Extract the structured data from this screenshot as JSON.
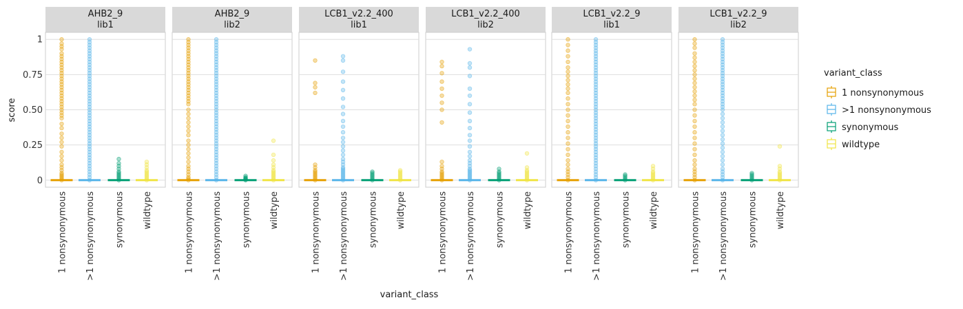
{
  "colors": {
    "1 nonsynonymous": "#E69F00",
    ">1 nonsynonymous": "#56B4E9",
    "synonymous": "#009E73",
    "wildtype": "#F0E442"
  },
  "chart_data": {
    "type": "scatter",
    "facets": [
      {
        "line1": "AHB2_9",
        "line2": "lib1",
        "points": {
          "1 nonsynonymous": [
            1,
            0.97,
            0.95,
            0.93,
            0.9,
            0.88,
            0.86,
            0.84,
            0.82,
            0.8,
            0.78,
            0.76,
            0.74,
            0.72,
            0.7,
            0.68,
            0.66,
            0.64,
            0.62,
            0.6,
            0.58,
            0.56,
            0.54,
            0.52,
            0.5,
            0.48,
            0.46,
            0.44,
            0.4,
            0.37,
            0.33,
            0.3,
            0.27,
            0.24,
            0.2,
            0.17,
            0.14,
            0.11,
            0.09,
            0.07,
            0.05,
            0.04,
            0.03,
            0.02,
            0.01,
            0
          ],
          ">1 nonsynonymous": [
            1,
            0.98,
            0.96,
            0.94,
            0.92,
            0.9,
            0.88,
            0.86,
            0.84,
            0.82,
            0.8,
            0.78,
            0.76,
            0.74,
            0.72,
            0.7,
            0.68,
            0.66,
            0.64,
            0.62,
            0.6,
            0.58,
            0.56,
            0.54,
            0.52,
            0.5,
            0.48,
            0.46,
            0.44,
            0.42,
            0.4,
            0.38,
            0.36,
            0.34,
            0.32,
            0.3,
            0.28,
            0.26,
            0.24,
            0.22,
            0.2,
            0.18,
            0.16,
            0.14,
            0.12,
            0.1,
            0.08,
            0.06,
            0.04,
            0.02,
            0
          ],
          "synonymous": [
            0.15,
            0.12,
            0.1,
            0.08,
            0.06,
            0.05,
            0.04,
            0.03,
            0.02,
            0.01,
            0
          ],
          "wildtype": [
            0.13,
            0.11,
            0.09,
            0.07,
            0.06,
            0.05,
            0.04,
            0.03,
            0.02,
            0.01,
            0
          ]
        }
      },
      {
        "line1": "AHB2_9",
        "line2": "lib2",
        "points": {
          "1 nonsynonymous": [
            1,
            0.98,
            0.96,
            0.94,
            0.92,
            0.9,
            0.88,
            0.86,
            0.84,
            0.82,
            0.8,
            0.78,
            0.76,
            0.74,
            0.72,
            0.7,
            0.68,
            0.66,
            0.64,
            0.62,
            0.6,
            0.58,
            0.56,
            0.54,
            0.5,
            0.47,
            0.44,
            0.41,
            0.38,
            0.35,
            0.32,
            0.28,
            0.25,
            0.22,
            0.19,
            0.16,
            0.13,
            0.1,
            0.08,
            0.06,
            0.04,
            0.02,
            0.01,
            0
          ],
          ">1 nonsynonymous": [
            1,
            0.98,
            0.96,
            0.94,
            0.92,
            0.9,
            0.88,
            0.86,
            0.84,
            0.82,
            0.8,
            0.78,
            0.76,
            0.74,
            0.72,
            0.7,
            0.68,
            0.66,
            0.64,
            0.62,
            0.6,
            0.58,
            0.56,
            0.54,
            0.52,
            0.5,
            0.48,
            0.46,
            0.44,
            0.42,
            0.4,
            0.38,
            0.36,
            0.34,
            0.32,
            0.3,
            0.28,
            0.26,
            0.24,
            0.22,
            0.2,
            0.18,
            0.16,
            0.14,
            0.12,
            0.1,
            0.08,
            0.06,
            0.04,
            0.02,
            0
          ],
          "synonymous": [
            0.03,
            0.02,
            0.015,
            0.01,
            0.005,
            0
          ],
          "wildtype": [
            0.28,
            0.18,
            0.14,
            0.11,
            0.09,
            0.07,
            0.06,
            0.05,
            0.04,
            0.03,
            0.02,
            0.01,
            0
          ]
        }
      },
      {
        "line1": "LCB1_v2.2_400",
        "line2": "lib1",
        "points": {
          "1 nonsynonymous": [
            0.85,
            0.69,
            0.66,
            0.62,
            0.11,
            0.09,
            0.07,
            0.06,
            0.05,
            0.04,
            0.03,
            0.02,
            0.01,
            0
          ],
          ">1 nonsynonymous": [
            0.88,
            0.85,
            0.77,
            0.7,
            0.64,
            0.58,
            0.52,
            0.47,
            0.42,
            0.38,
            0.34,
            0.3,
            0.27,
            0.24,
            0.21,
            0.18,
            0.15,
            0.13,
            0.11,
            0.09,
            0.08,
            0.07,
            0.06,
            0.05,
            0.04,
            0.03,
            0.02,
            0.01,
            0
          ],
          "synonymous": [
            0.06,
            0.05,
            0.04,
            0.03,
            0.02,
            0.01,
            0
          ],
          "wildtype": [
            0.07,
            0.06,
            0.05,
            0.04,
            0.03,
            0.02,
            0.01,
            0
          ]
        }
      },
      {
        "line1": "LCB1_v2.2_400",
        "line2": "lib2",
        "points": {
          "1 nonsynonymous": [
            0.84,
            0.81,
            0.76,
            0.7,
            0.65,
            0.6,
            0.55,
            0.5,
            0.41,
            0.13,
            0.1,
            0.08,
            0.06,
            0.05,
            0.04,
            0.03,
            0.02,
            0.01,
            0
          ],
          ">1 nonsynonymous": [
            0.93,
            0.83,
            0.8,
            0.74,
            0.65,
            0.6,
            0.54,
            0.48,
            0.42,
            0.37,
            0.32,
            0.28,
            0.24,
            0.2,
            0.17,
            0.14,
            0.12,
            0.1,
            0.08,
            0.07,
            0.06,
            0.05,
            0.04,
            0.03,
            0.02,
            0.01,
            0
          ],
          "synonymous": [
            0.08,
            0.06,
            0.05,
            0.04,
            0.03,
            0.02,
            0.01,
            0
          ],
          "wildtype": [
            0.19,
            0.09,
            0.07,
            0.06,
            0.05,
            0.04,
            0.03,
            0.02,
            0.01,
            0
          ]
        }
      },
      {
        "line1": "LCB1_v2.2_9",
        "line2": "lib1",
        "points": {
          "1 nonsynonymous": [
            1,
            0.96,
            0.92,
            0.88,
            0.84,
            0.8,
            0.77,
            0.74,
            0.71,
            0.68,
            0.65,
            0.62,
            0.58,
            0.54,
            0.5,
            0.46,
            0.42,
            0.38,
            0.34,
            0.3,
            0.26,
            0.22,
            0.18,
            0.14,
            0.11,
            0.08,
            0.06,
            0.04,
            0.02,
            0
          ],
          ">1 nonsynonymous": [
            1,
            0.98,
            0.96,
            0.94,
            0.92,
            0.9,
            0.88,
            0.86,
            0.84,
            0.82,
            0.8,
            0.78,
            0.76,
            0.74,
            0.72,
            0.7,
            0.68,
            0.66,
            0.64,
            0.62,
            0.6,
            0.58,
            0.56,
            0.54,
            0.52,
            0.5,
            0.48,
            0.46,
            0.44,
            0.42,
            0.4,
            0.38,
            0.36,
            0.34,
            0.32,
            0.3,
            0.28,
            0.26,
            0.24,
            0.22,
            0.2,
            0.18,
            0.16,
            0.14,
            0.12,
            0.1,
            0.08,
            0.06,
            0.04,
            0.02,
            0
          ],
          "synonymous": [
            0.04,
            0.03,
            0.02,
            0.01,
            0
          ],
          "wildtype": [
            0.1,
            0.08,
            0.06,
            0.05,
            0.04,
            0.03,
            0.02,
            0.01,
            0
          ]
        }
      },
      {
        "line1": "LCB1_v2.2_9",
        "line2": "lib2",
        "points": {
          "1 nonsynonymous": [
            1,
            0.97,
            0.94,
            0.9,
            0.87,
            0.84,
            0.81,
            0.78,
            0.75,
            0.72,
            0.69,
            0.66,
            0.63,
            0.6,
            0.57,
            0.54,
            0.5,
            0.46,
            0.42,
            0.38,
            0.34,
            0.3,
            0.26,
            0.22,
            0.18,
            0.14,
            0.11,
            0.08,
            0.06,
            0.04,
            0.02,
            0
          ],
          ">1 nonsynonymous": [
            1,
            0.98,
            0.96,
            0.94,
            0.92,
            0.9,
            0.88,
            0.86,
            0.84,
            0.82,
            0.8,
            0.78,
            0.76,
            0.74,
            0.72,
            0.7,
            0.68,
            0.66,
            0.64,
            0.62,
            0.6,
            0.58,
            0.56,
            0.54,
            0.52,
            0.5,
            0.47,
            0.44,
            0.41,
            0.38,
            0.35,
            0.32,
            0.29,
            0.26,
            0.23,
            0.2,
            0.17,
            0.14,
            0.11,
            0.08,
            0.06,
            0.04,
            0.02,
            0
          ],
          "synonymous": [
            0.05,
            0.04,
            0.03,
            0.02,
            0.01,
            0
          ],
          "wildtype": [
            0.24,
            0.1,
            0.08,
            0.06,
            0.05,
            0.04,
            0.03,
            0.02,
            0.01,
            0
          ]
        }
      }
    ],
    "categories": [
      "1 nonsynonymous",
      ">1 nonsynonymous",
      "synonymous",
      "wildtype"
    ],
    "yticks": [
      0,
      0.25,
      0.5,
      0.75,
      1
    ],
    "ytick_labels": [
      "0",
      "0.25",
      "0.50",
      "0.75",
      "1"
    ],
    "ylim": [
      -0.05,
      1.05
    ],
    "xlabel": "variant_class",
    "ylabel": "score",
    "grid": true,
    "legend": {
      "title": "variant_class",
      "position": "right",
      "entries": [
        "1 nonsynonymous",
        ">1 nonsynonymous",
        "synonymous",
        "wildtype"
      ]
    }
  }
}
